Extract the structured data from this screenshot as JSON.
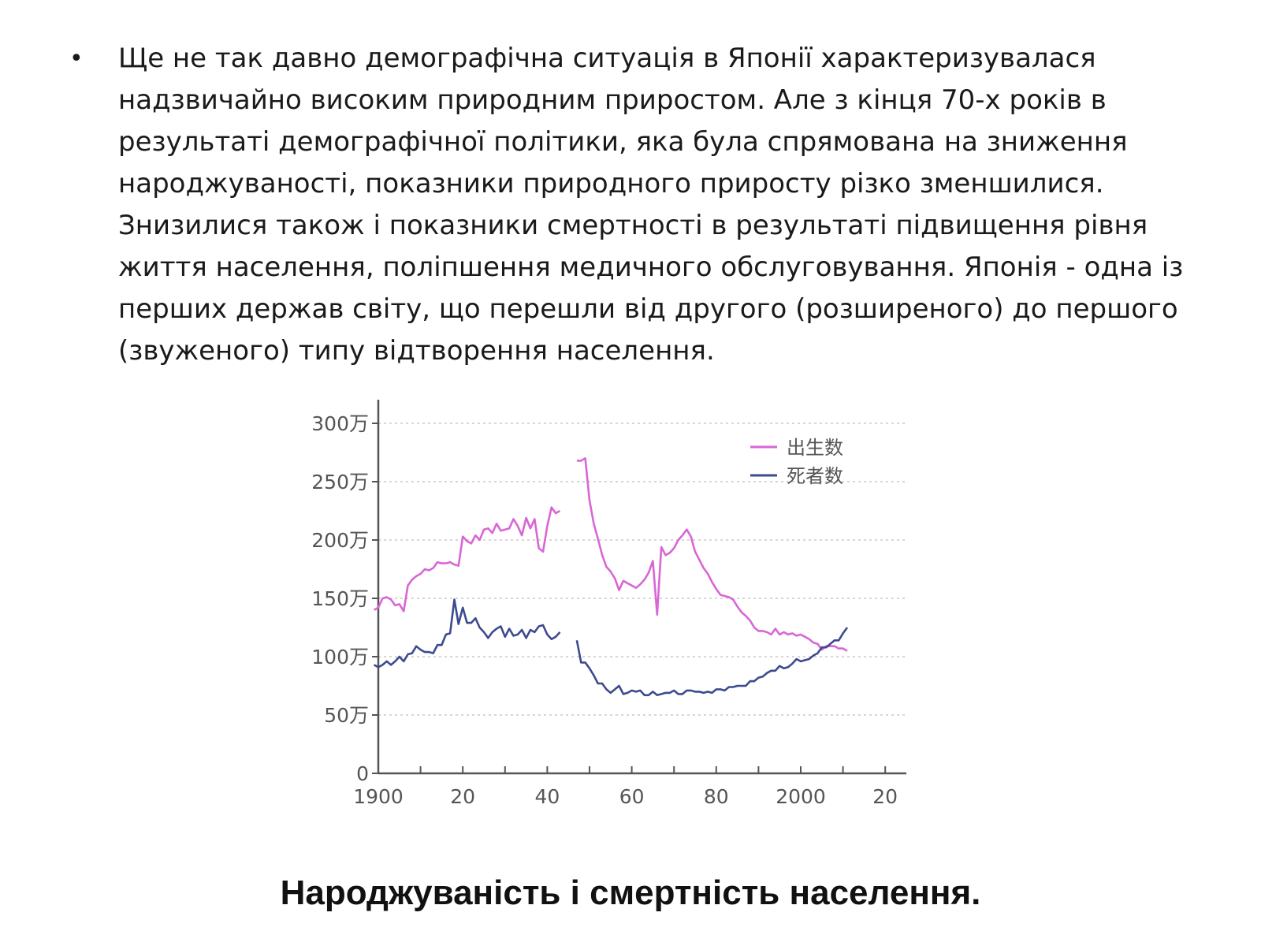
{
  "slide": {
    "bullet": "•",
    "paragraph": "Ще не так давно демографічна ситуація в Японії характеризувалася надзвичайно високим природним приростом. Але з кінця 70-х років в результаті демографічної політики, яка була спрямована на зниження народжуваності, показники природного приросту різко зменшилися. Знизилися також і показники смертності в результаті підвищення рівня життя населення, поліпшення медичного обслуговування. Японія - одна із перших держав світу, що перешли від другого (розширеного) до першого (звуженого) типу відтворення населення.",
    "caption": "Народжуваність і смертність населення."
  },
  "chart_data": {
    "type": "line",
    "title": "",
    "xlabel": "",
    "ylabel": "",
    "xlim": [
      1900,
      2025
    ],
    "ylim": [
      0,
      3000000
    ],
    "x_ticks": [
      1900,
      1910,
      1920,
      1930,
      1940,
      1950,
      1960,
      1970,
      1980,
      1990,
      2000,
      2010,
      2020
    ],
    "x_tick_labels": [
      {
        "value": 1900,
        "label": "1900"
      },
      {
        "value": 1920,
        "label": "20"
      },
      {
        "value": 1940,
        "label": "40"
      },
      {
        "value": 1960,
        "label": "60"
      },
      {
        "value": 1980,
        "label": "80"
      },
      {
        "value": 2000,
        "label": "2000"
      },
      {
        "value": 2020,
        "label": "20"
      }
    ],
    "y_ticks": [
      {
        "value": 0,
        "label": "0"
      },
      {
        "value": 500000,
        "label": "50万"
      },
      {
        "value": 1000000,
        "label": "100万"
      },
      {
        "value": 1500000,
        "label": "150万"
      },
      {
        "value": 2000000,
        "label": "200万"
      },
      {
        "value": 2500000,
        "label": "250万"
      },
      {
        "value": 3000000,
        "label": "300万"
      }
    ],
    "grid": true,
    "legend_position": "top-right",
    "series": [
      {
        "name": "出生数",
        "color": "#d966d6",
        "segments": [
          [
            [
              1899,
              1400000
            ],
            [
              1900,
              1420000
            ],
            [
              1901,
              1500000
            ],
            [
              1902,
              1510000
            ],
            [
              1903,
              1490000
            ],
            [
              1904,
              1440000
            ],
            [
              1905,
              1450000
            ],
            [
              1906,
              1390000
            ],
            [
              1907,
              1610000
            ],
            [
              1908,
              1660000
            ],
            [
              1909,
              1690000
            ],
            [
              1910,
              1710000
            ],
            [
              1911,
              1750000
            ],
            [
              1912,
              1740000
            ],
            [
              1913,
              1760000
            ],
            [
              1914,
              1810000
            ],
            [
              1915,
              1800000
            ],
            [
              1916,
              1800000
            ],
            [
              1917,
              1810000
            ],
            [
              1918,
              1790000
            ],
            [
              1919,
              1780000
            ],
            [
              1920,
              2030000
            ],
            [
              1921,
              1990000
            ],
            [
              1922,
              1970000
            ],
            [
              1923,
              2040000
            ],
            [
              1924,
              2000000
            ],
            [
              1925,
              2090000
            ],
            [
              1926,
              2100000
            ],
            [
              1927,
              2060000
            ],
            [
              1928,
              2140000
            ],
            [
              1929,
              2080000
            ],
            [
              1930,
              2090000
            ],
            [
              1931,
              2100000
            ],
            [
              1932,
              2180000
            ],
            [
              1933,
              2120000
            ],
            [
              1934,
              2040000
            ],
            [
              1935,
              2190000
            ],
            [
              1936,
              2100000
            ],
            [
              1937,
              2180000
            ],
            [
              1938,
              1930000
            ],
            [
              1939,
              1900000
            ],
            [
              1940,
              2120000
            ],
            [
              1941,
              2280000
            ],
            [
              1942,
              2230000
            ],
            [
              1943,
              2250000
            ]
          ],
          [
            [
              1947,
              2680000
            ],
            [
              1948,
              2680000
            ],
            [
              1949,
              2700000
            ],
            [
              1950,
              2340000
            ],
            [
              1951,
              2140000
            ],
            [
              1952,
              2010000
            ],
            [
              1953,
              1870000
            ],
            [
              1954,
              1770000
            ],
            [
              1955,
              1730000
            ],
            [
              1956,
              1670000
            ],
            [
              1957,
              1570000
            ],
            [
              1958,
              1650000
            ],
            [
              1959,
              1630000
            ],
            [
              1960,
              1610000
            ],
            [
              1961,
              1590000
            ],
            [
              1962,
              1620000
            ],
            [
              1963,
              1660000
            ],
            [
              1964,
              1720000
            ],
            [
              1965,
              1820000
            ],
            [
              1966,
              1360000
            ],
            [
              1967,
              1940000
            ],
            [
              1968,
              1870000
            ],
            [
              1969,
              1890000
            ],
            [
              1970,
              1930000
            ],
            [
              1971,
              2000000
            ],
            [
              1972,
              2040000
            ],
            [
              1973,
              2090000
            ],
            [
              1974,
              2030000
            ],
            [
              1975,
              1900000
            ],
            [
              1976,
              1830000
            ],
            [
              1977,
              1760000
            ],
            [
              1978,
              1710000
            ],
            [
              1979,
              1640000
            ],
            [
              1980,
              1580000
            ],
            [
              1981,
              1530000
            ],
            [
              1982,
              1520000
            ],
            [
              1983,
              1510000
            ],
            [
              1984,
              1490000
            ],
            [
              1985,
              1430000
            ],
            [
              1986,
              1380000
            ],
            [
              1987,
              1350000
            ],
            [
              1988,
              1310000
            ],
            [
              1989,
              1250000
            ],
            [
              1990,
              1220000
            ],
            [
              1991,
              1220000
            ],
            [
              1992,
              1210000
            ],
            [
              1993,
              1190000
            ],
            [
              1994,
              1240000
            ],
            [
              1995,
              1190000
            ],
            [
              1996,
              1210000
            ],
            [
              1997,
              1190000
            ],
            [
              1998,
              1200000
            ],
            [
              1999,
              1180000
            ],
            [
              2000,
              1190000
            ],
            [
              2001,
              1170000
            ],
            [
              2002,
              1150000
            ],
            [
              2003,
              1120000
            ],
            [
              2004,
              1110000
            ],
            [
              2005,
              1060000
            ],
            [
              2006,
              1090000
            ],
            [
              2007,
              1090000
            ],
            [
              2008,
              1090000
            ],
            [
              2009,
              1070000
            ],
            [
              2010,
              1070000
            ],
            [
              2011,
              1050000
            ]
          ]
        ]
      },
      {
        "name": "死者数",
        "color": "#3d4a8f",
        "segments": [
          [
            [
              1899,
              930000
            ],
            [
              1900,
              910000
            ],
            [
              1901,
              930000
            ],
            [
              1902,
              960000
            ],
            [
              1903,
              930000
            ],
            [
              1904,
              960000
            ],
            [
              1905,
              1000000
            ],
            [
              1906,
              960000
            ],
            [
              1907,
              1020000
            ],
            [
              1908,
              1030000
            ],
            [
              1909,
              1090000
            ],
            [
              1910,
              1060000
            ],
            [
              1911,
              1040000
            ],
            [
              1912,
              1040000
            ],
            [
              1913,
              1030000
            ],
            [
              1914,
              1100000
            ],
            [
              1915,
              1100000
            ],
            [
              1916,
              1190000
            ],
            [
              1917,
              1200000
            ],
            [
              1918,
              1490000
            ],
            [
              1919,
              1280000
            ],
            [
              1920,
              1420000
            ],
            [
              1921,
              1290000
            ],
            [
              1922,
              1290000
            ],
            [
              1923,
              1330000
            ],
            [
              1924,
              1250000
            ],
            [
              1925,
              1210000
            ],
            [
              1926,
              1160000
            ],
            [
              1927,
              1210000
            ],
            [
              1928,
              1240000
            ],
            [
              1929,
              1260000
            ],
            [
              1930,
              1170000
            ],
            [
              1931,
              1240000
            ],
            [
              1932,
              1180000
            ],
            [
              1933,
              1190000
            ],
            [
              1934,
              1230000
            ],
            [
              1935,
              1160000
            ],
            [
              1936,
              1230000
            ],
            [
              1937,
              1210000
            ],
            [
              1938,
              1260000
            ],
            [
              1939,
              1270000
            ],
            [
              1940,
              1190000
            ],
            [
              1941,
              1150000
            ],
            [
              1942,
              1170000
            ],
            [
              1943,
              1210000
            ]
          ],
          [
            [
              1947,
              1140000
            ],
            [
              1948,
              950000
            ],
            [
              1949,
              950000
            ],
            [
              1950,
              900000
            ],
            [
              1951,
              840000
            ],
            [
              1952,
              770000
            ],
            [
              1953,
              770000
            ],
            [
              1954,
              720000
            ],
            [
              1955,
              690000
            ],
            [
              1956,
              720000
            ],
            [
              1957,
              750000
            ],
            [
              1958,
              680000
            ],
            [
              1959,
              690000
            ],
            [
              1960,
              710000
            ],
            [
              1961,
              700000
            ],
            [
              1962,
              710000
            ],
            [
              1963,
              670000
            ],
            [
              1964,
              670000
            ],
            [
              1965,
              700000
            ],
            [
              1966,
              670000
            ],
            [
              1967,
              680000
            ],
            [
              1968,
              690000
            ],
            [
              1969,
              690000
            ],
            [
              1970,
              710000
            ],
            [
              1971,
              680000
            ],
            [
              1972,
              680000
            ],
            [
              1973,
              710000
            ],
            [
              1974,
              710000
            ],
            [
              1975,
              700000
            ],
            [
              1976,
              700000
            ],
            [
              1977,
              690000
            ],
            [
              1978,
              700000
            ],
            [
              1979,
              690000
            ],
            [
              1980,
              720000
            ],
            [
              1981,
              720000
            ],
            [
              1982,
              710000
            ],
            [
              1983,
              740000
            ],
            [
              1984,
              740000
            ],
            [
              1985,
              750000
            ],
            [
              1986,
              750000
            ],
            [
              1987,
              750000
            ],
            [
              1988,
              790000
            ],
            [
              1989,
              790000
            ],
            [
              1990,
              820000
            ],
            [
              1991,
              830000
            ],
            [
              1992,
              860000
            ],
            [
              1993,
              880000
            ],
            [
              1994,
              880000
            ],
            [
              1995,
              920000
            ],
            [
              1996,
              900000
            ],
            [
              1997,
              910000
            ],
            [
              1998,
              940000
            ],
            [
              1999,
              980000
            ],
            [
              2000,
              960000
            ],
            [
              2001,
              970000
            ],
            [
              2002,
              980000
            ],
            [
              2003,
              1010000
            ],
            [
              2004,
              1030000
            ],
            [
              2005,
              1080000
            ],
            [
              2006,
              1080000
            ],
            [
              2007,
              1110000
            ],
            [
              2008,
              1140000
            ],
            [
              2009,
              1140000
            ],
            [
              2010,
              1200000
            ],
            [
              2011,
              1250000
            ]
          ]
        ]
      }
    ]
  }
}
